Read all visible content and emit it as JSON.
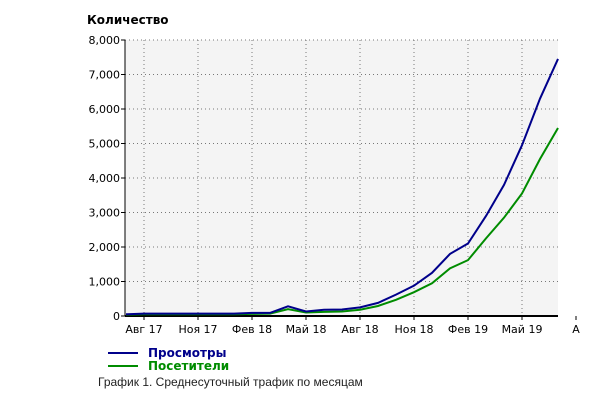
{
  "chart_data": {
    "type": "line",
    "ylabel": "Количество",
    "ylim": [
      0,
      8000
    ],
    "yticks": [
      "0",
      "1,000",
      "2,000",
      "3,000",
      "4,000",
      "5,000",
      "6,000",
      "7,000",
      "8,000"
    ],
    "xticks": [
      "Авг 17",
      "Ноя 17",
      "Фев 18",
      "Май 18",
      "Авг 18",
      "Ноя 18",
      "Фев 19",
      "Май 19",
      "А"
    ],
    "x": [
      "2017-07",
      "2017-08",
      "2017-09",
      "2017-10",
      "2017-11",
      "2017-12",
      "2018-01",
      "2018-02",
      "2018-03",
      "2018-04",
      "2018-05",
      "2018-06",
      "2018-07",
      "2018-08",
      "2018-09",
      "2018-10",
      "2018-11",
      "2018-12",
      "2019-01",
      "2019-02",
      "2019-03",
      "2019-04",
      "2019-05",
      "2019-06",
      "2019-07"
    ],
    "grid": true,
    "legend": "bottom-left",
    "series": [
      {
        "name": "Просмотры",
        "color": "#00008b",
        "values": [
          50,
          70,
          70,
          70,
          70,
          70,
          70,
          90,
          90,
          280,
          130,
          180,
          190,
          250,
          380,
          620,
          880,
          1250,
          1800,
          2100,
          2900,
          3800,
          4950,
          6300,
          7450
        ]
      },
      {
        "name": "Посетители",
        "color": "#008c00",
        "values": [
          40,
          50,
          50,
          50,
          50,
          50,
          50,
          60,
          70,
          200,
          100,
          120,
          130,
          180,
          290,
          470,
          690,
          950,
          1380,
          1620,
          2250,
          2850,
          3550,
          4550,
          5450
        ]
      }
    ]
  },
  "caption": "График 1. Среднесуточный трафик по месяцам"
}
